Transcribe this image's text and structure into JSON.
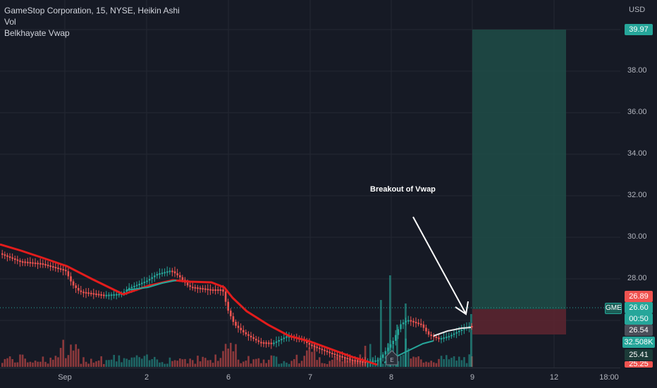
{
  "legend": {
    "title": "GameStop Corporation, 15, NYSE, Heikin Ashi",
    "vol": "Vol",
    "indicator": "Belkhayate Vwap"
  },
  "currency": "USD",
  "price_ticks": [
    "38.00",
    "36.00",
    "34.00",
    "32.00",
    "30.00",
    "28.00"
  ],
  "price_tags": {
    "target": "39.97",
    "stop": "26.89",
    "last": "26.60",
    "countdown": "00:50",
    "vwap": "26.54",
    "volume": "32.508K",
    "low": "25.41",
    "bottom": "25.25"
  },
  "symbol_tag": "GME",
  "time_labels": [
    "Sep",
    "2",
    "6",
    "7",
    "8",
    "9",
    "12",
    "18:00"
  ],
  "annotation": "Breakout of Vwap",
  "event_marker": "E",
  "colors": {
    "background": "#161a25",
    "up": "#26a69a",
    "down": "#ef5350",
    "vwap_line": "#e31c1c",
    "profit_zone": "#1e4e48",
    "loss_zone": "#5a2530",
    "grid": "#242832"
  }
}
